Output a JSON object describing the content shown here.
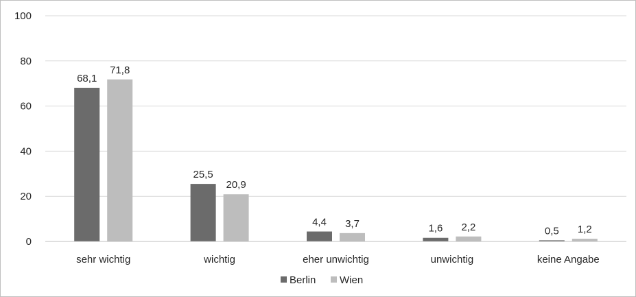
{
  "chart_data": {
    "type": "bar",
    "categories": [
      "sehr wichtig",
      "wichtig",
      "eher unwichtig",
      "unwichtig",
      "keine Angabe"
    ],
    "series": [
      {
        "name": "Berlin",
        "color": "#6b6b6b",
        "values": [
          68.1,
          25.5,
          4.4,
          1.6,
          0.5
        ],
        "labels": [
          "68,1",
          "25,5",
          "4,4",
          "1,6",
          "0,5"
        ]
      },
      {
        "name": "Wien",
        "color": "#bdbdbd",
        "values": [
          71.8,
          20.9,
          3.7,
          2.2,
          1.2
        ],
        "labels": [
          "71,8",
          "20,9",
          "3,7",
          "2,2",
          "1,2"
        ]
      }
    ],
    "yticks": [
      "0",
      "20",
      "40",
      "60",
      "80",
      "100"
    ],
    "ylim": [
      0,
      100
    ],
    "grid": true,
    "legend": "bottom",
    "gridline_color": "#d9d9d9",
    "axis_color": "#bfbfbf"
  }
}
